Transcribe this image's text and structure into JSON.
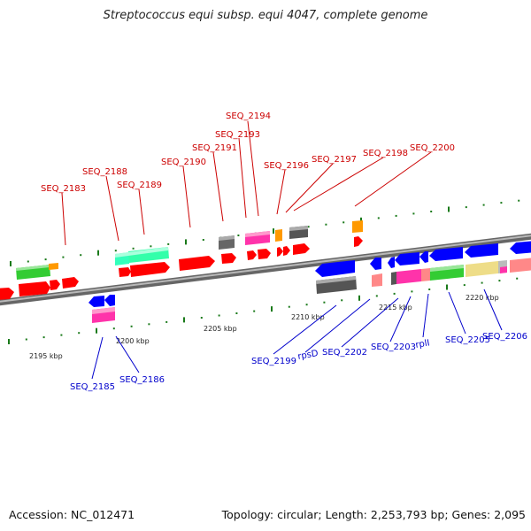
{
  "title": "Streptococcus equi subsp. equi 4047, complete genome",
  "accession": "Accession: NC_012471",
  "summary": "Topology: circular; Length: 2,253,793 bp; Genes: 2,095",
  "colors": {
    "forward_label": "#cc0000",
    "reverse_label": "#0000cc",
    "axis": "#888888",
    "tick": "#1a7a1a"
  },
  "kbp_labels": [
    "2195 kbp",
    "2200 kbp",
    "2205 kbp",
    "2210 kbp",
    "2215 kbp",
    "2220 kbp"
  ],
  "forward_labels": [
    "SEQ_2183",
    "SEQ_2188",
    "SEQ_2189",
    "SEQ_2190",
    "SEQ_2191",
    "SEQ_2193",
    "SEQ_2194",
    "SEQ_2196",
    "SEQ_2197",
    "SEQ_2198",
    "SEQ_2200"
  ],
  "reverse_labels": [
    "SEQ_2185",
    "SEQ_2186",
    "SEQ_2199",
    "rpsD",
    "SEQ_2202",
    "SEQ_2203",
    "rplI",
    "SEQ_2205",
    "SEQ_2206"
  ]
}
